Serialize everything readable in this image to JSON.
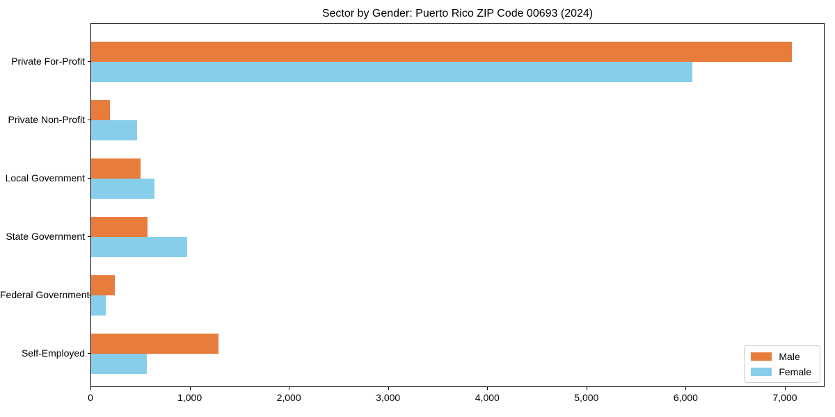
{
  "chart_data": {
    "type": "bar",
    "orientation": "horizontal",
    "title": "Sector by Gender: Puerto Rico ZIP Code 00693 (2024)",
    "categories": [
      "Private For-Profit",
      "Private Non-Profit",
      "Local Government",
      "State Government",
      "Federal Government",
      "Self-Employed"
    ],
    "series": [
      {
        "name": "Male",
        "color": "#E87C3C",
        "values": [
          7060,
          190,
          495,
          570,
          240,
          1280
        ]
      },
      {
        "name": "Female",
        "color": "#87CEEB",
        "values": [
          6060,
          465,
          640,
          970,
          150,
          560
        ]
      }
    ],
    "xlim": [
      0,
      7400
    ],
    "xticks": [
      0,
      1000,
      2000,
      3000,
      4000,
      5000,
      6000,
      7000
    ],
    "xtick_labels": [
      "0",
      "1,000",
      "2,000",
      "3,000",
      "4,000",
      "5,000",
      "6,000",
      "7,000"
    ],
    "legend": {
      "position": "lower right",
      "entries": [
        "Male",
        "Female"
      ]
    },
    "grid": false,
    "frame_color": "#000000",
    "background_color": "#ffffff"
  }
}
